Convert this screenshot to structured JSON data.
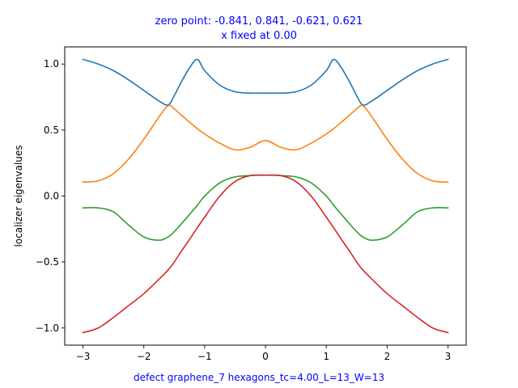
{
  "chart_data": {
    "type": "line",
    "title": "zero point: -0.841, 0.841, -0.621, 0.621",
    "subtitle": "x fixed at 0.00",
    "xlabel": "defect graphene_7 hexagons_tc=4.00_L=13_W=13",
    "ylabel": "localizer eigenvalues",
    "xlim": [
      -3.3,
      3.3
    ],
    "ylim": [
      -1.13,
      1.13
    ],
    "xticks": [
      -3,
      -2,
      -1,
      0,
      1,
      2,
      3
    ],
    "yticks": [
      -1.0,
      -0.5,
      0.0,
      0.5,
      1.0
    ],
    "xtick_labels": [
      "−3",
      "−2",
      "−1",
      "0",
      "1",
      "2",
      "3"
    ],
    "ytick_labels": [
      "−1.0",
      "−0.5",
      "0.0",
      "0.5",
      "1.0"
    ],
    "grid": false,
    "legend": "none",
    "x": [
      -3.0,
      -2.75,
      -2.5,
      -2.25,
      -2.0,
      -1.75,
      -1.6,
      -1.5,
      -1.4,
      -1.25,
      -1.12,
      -1.0,
      -0.75,
      -0.5,
      -0.25,
      0.0,
      0.25,
      0.5,
      0.75,
      1.0,
      1.12,
      1.25,
      1.4,
      1.5,
      1.6,
      1.75,
      2.0,
      2.25,
      2.5,
      2.75,
      3.0
    ],
    "series": [
      {
        "color": "#1f77b4",
        "values": [
          1.035,
          1.0,
          0.95,
          0.88,
          0.8,
          0.72,
          0.69,
          0.76,
          0.85,
          0.97,
          1.035,
          0.95,
          0.84,
          0.79,
          0.78,
          0.78,
          0.78,
          0.79,
          0.84,
          0.95,
          1.035,
          0.97,
          0.85,
          0.76,
          0.69,
          0.72,
          0.8,
          0.88,
          0.95,
          1.0,
          1.035
        ]
      },
      {
        "color": "#ff7f0e",
        "values": [
          0.105,
          0.115,
          0.17,
          0.28,
          0.43,
          0.6,
          0.685,
          0.66,
          0.62,
          0.56,
          0.51,
          0.47,
          0.4,
          0.35,
          0.37,
          0.42,
          0.37,
          0.35,
          0.4,
          0.47,
          0.51,
          0.56,
          0.62,
          0.66,
          0.685,
          0.6,
          0.43,
          0.28,
          0.17,
          0.115,
          0.105
        ]
      },
      {
        "color": "#2ca02c",
        "values": [
          -0.09,
          -0.09,
          -0.12,
          -0.22,
          -0.31,
          -0.335,
          -0.31,
          -0.27,
          -0.22,
          -0.14,
          -0.07,
          0.0,
          0.1,
          0.145,
          0.155,
          0.158,
          0.155,
          0.145,
          0.1,
          0.0,
          -0.07,
          -0.14,
          -0.22,
          -0.27,
          -0.31,
          -0.335,
          -0.31,
          -0.22,
          -0.12,
          -0.09,
          -0.09
        ]
      },
      {
        "color": "#d62728",
        "values": [
          -1.035,
          -1.0,
          -0.92,
          -0.83,
          -0.74,
          -0.63,
          -0.56,
          -0.5,
          -0.43,
          -0.33,
          -0.24,
          -0.16,
          0.0,
          0.11,
          0.155,
          0.158,
          0.155,
          0.11,
          0.0,
          -0.16,
          -0.24,
          -0.33,
          -0.43,
          -0.5,
          -0.56,
          -0.63,
          -0.74,
          -0.83,
          -0.92,
          -1.0,
          -1.035
        ]
      }
    ]
  }
}
